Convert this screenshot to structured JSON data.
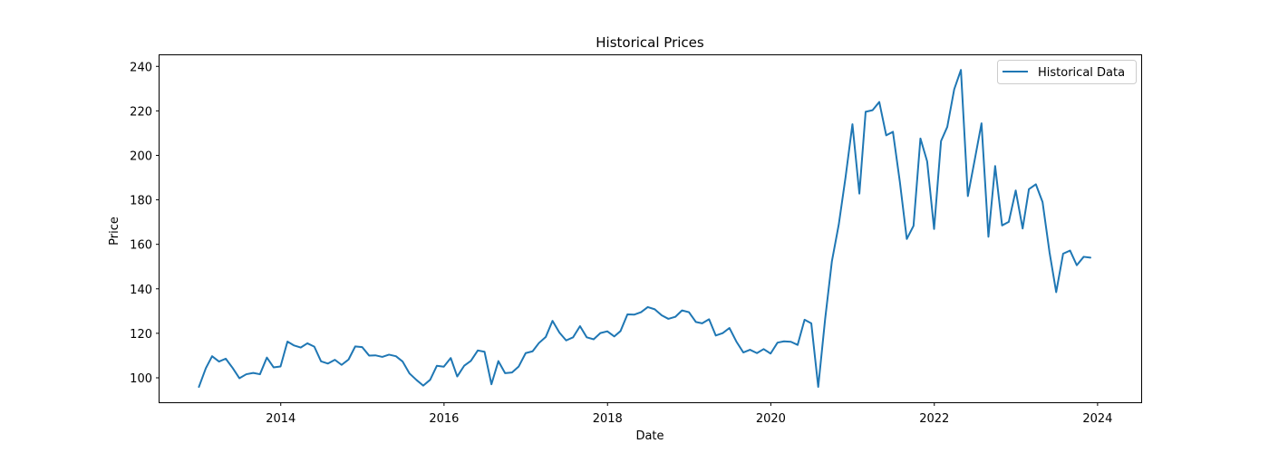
{
  "chart_data": {
    "type": "line",
    "title": "Historical Prices",
    "xlabel": "Date",
    "ylabel": "Price",
    "xlim": [
      "2012-07-08",
      "2024-07-14"
    ],
    "ylim": [
      89,
      245
    ],
    "x_ticks": [
      {
        "date": "2014-01-01",
        "label": "2014"
      },
      {
        "date": "2016-01-01",
        "label": "2016"
      },
      {
        "date": "2018-01-01",
        "label": "2018"
      },
      {
        "date": "2020-01-01",
        "label": "2020"
      },
      {
        "date": "2022-01-01",
        "label": "2022"
      },
      {
        "date": "2024-01-01",
        "label": "2024"
      }
    ],
    "y_ticks": [
      100,
      120,
      140,
      160,
      180,
      200,
      220,
      240
    ],
    "grid": false,
    "legend_position": "top-right",
    "series": [
      {
        "name": "Historical Data",
        "color": "#1f77b4",
        "points": [
          [
            "2012-12-31",
            95.9
          ],
          [
            "2013-01-31",
            104.3
          ],
          [
            "2013-02-28",
            109.7
          ],
          [
            "2013-03-31",
            107.3
          ],
          [
            "2013-04-30",
            108.6
          ],
          [
            "2013-05-31",
            104.4
          ],
          [
            "2013-06-30",
            99.8
          ],
          [
            "2013-07-31",
            101.6
          ],
          [
            "2013-08-31",
            102.2
          ],
          [
            "2013-09-30",
            101.6
          ],
          [
            "2013-10-31",
            109.1
          ],
          [
            "2013-11-30",
            104.7
          ],
          [
            "2013-12-31",
            105.1
          ],
          [
            "2014-01-31",
            116.3
          ],
          [
            "2014-02-28",
            114.6
          ],
          [
            "2014-03-31",
            113.6
          ],
          [
            "2014-04-30",
            115.5
          ],
          [
            "2014-05-31",
            114.0
          ],
          [
            "2014-06-30",
            107.4
          ],
          [
            "2014-07-31",
            106.4
          ],
          [
            "2014-08-31",
            108.1
          ],
          [
            "2014-09-30",
            105.8
          ],
          [
            "2014-10-31",
            108.2
          ],
          [
            "2014-11-30",
            114.1
          ],
          [
            "2014-12-31",
            113.8
          ],
          [
            "2015-01-31",
            110.0
          ],
          [
            "2015-02-28",
            110.1
          ],
          [
            "2015-03-31",
            109.4
          ],
          [
            "2015-04-30",
            110.4
          ],
          [
            "2015-05-31",
            109.7
          ],
          [
            "2015-06-30",
            107.3
          ],
          [
            "2015-07-31",
            101.9
          ],
          [
            "2015-08-31",
            99.0
          ],
          [
            "2015-09-30",
            96.5
          ],
          [
            "2015-10-31",
            99.1
          ],
          [
            "2015-11-30",
            105.4
          ],
          [
            "2015-12-31",
            105.0
          ],
          [
            "2016-01-31",
            108.9
          ],
          [
            "2016-02-29",
            100.6
          ],
          [
            "2016-03-31",
            105.4
          ],
          [
            "2016-04-30",
            107.6
          ],
          [
            "2016-05-31",
            112.3
          ],
          [
            "2016-06-30",
            111.7
          ],
          [
            "2016-07-31",
            97.1
          ],
          [
            "2016-08-31",
            107.5
          ],
          [
            "2016-09-30",
            102.1
          ],
          [
            "2016-10-31",
            102.4
          ],
          [
            "2016-11-30",
            105.1
          ],
          [
            "2016-12-31",
            111.1
          ],
          [
            "2017-01-31",
            111.9
          ],
          [
            "2017-02-28",
            115.6
          ],
          [
            "2017-03-31",
            118.4
          ],
          [
            "2017-04-30",
            125.6
          ],
          [
            "2017-05-31",
            120.3
          ],
          [
            "2017-06-30",
            116.8
          ],
          [
            "2017-07-31",
            118.2
          ],
          [
            "2017-08-31",
            123.2
          ],
          [
            "2017-09-30",
            118.2
          ],
          [
            "2017-10-31",
            117.3
          ],
          [
            "2017-11-30",
            120.1
          ],
          [
            "2017-12-31",
            120.9
          ],
          [
            "2018-01-31",
            118.6
          ],
          [
            "2018-02-28",
            121.0
          ],
          [
            "2018-03-31",
            128.5
          ],
          [
            "2018-04-30",
            128.4
          ],
          [
            "2018-05-31",
            129.5
          ],
          [
            "2018-06-30",
            131.8
          ],
          [
            "2018-07-31",
            130.8
          ],
          [
            "2018-08-31",
            128.1
          ],
          [
            "2018-09-30",
            126.5
          ],
          [
            "2018-10-31",
            127.4
          ],
          [
            "2018-11-30",
            130.3
          ],
          [
            "2018-12-31",
            129.5
          ],
          [
            "2019-01-31",
            125.1
          ],
          [
            "2019-02-28",
            124.5
          ],
          [
            "2019-03-31",
            126.3
          ],
          [
            "2019-04-30",
            119.0
          ],
          [
            "2019-05-31",
            120.1
          ],
          [
            "2019-06-30",
            122.4
          ],
          [
            "2019-07-31",
            116.3
          ],
          [
            "2019-08-31",
            111.4
          ],
          [
            "2019-09-30",
            112.6
          ],
          [
            "2019-10-31",
            111.1
          ],
          [
            "2019-11-30",
            112.9
          ],
          [
            "2019-12-31",
            110.9
          ],
          [
            "2020-01-31",
            115.8
          ],
          [
            "2020-02-29",
            116.4
          ],
          [
            "2020-03-31",
            116.2
          ],
          [
            "2020-04-30",
            114.8
          ],
          [
            "2020-05-31",
            126.1
          ],
          [
            "2020-06-30",
            124.5
          ],
          [
            "2020-07-31",
            95.9
          ],
          [
            "2020-08-31",
            126.5
          ],
          [
            "2020-09-30",
            152.3
          ],
          [
            "2020-10-31",
            169.0
          ],
          [
            "2020-11-30",
            190.0
          ],
          [
            "2020-12-31",
            214.0
          ],
          [
            "2021-01-31",
            182.8
          ],
          [
            "2021-02-28",
            219.6
          ],
          [
            "2021-03-31",
            220.3
          ],
          [
            "2021-04-30",
            224.0
          ],
          [
            "2021-05-31",
            209.0
          ],
          [
            "2021-06-30",
            210.6
          ],
          [
            "2021-07-31",
            188.1
          ],
          [
            "2021-08-31",
            162.4
          ],
          [
            "2021-09-30",
            168.3
          ],
          [
            "2021-10-31",
            207.6
          ],
          [
            "2021-11-30",
            197.3
          ],
          [
            "2021-12-31",
            166.9
          ],
          [
            "2022-01-31",
            206.4
          ],
          [
            "2022-02-28",
            212.8
          ],
          [
            "2022-03-31",
            229.7
          ],
          [
            "2022-04-30",
            238.4
          ],
          [
            "2022-05-31",
            181.7
          ],
          [
            "2022-06-30",
            197.6
          ],
          [
            "2022-07-31",
            214.4
          ],
          [
            "2022-08-31",
            163.4
          ],
          [
            "2022-09-30",
            195.2
          ],
          [
            "2022-10-31",
            168.5
          ],
          [
            "2022-11-30",
            170.1
          ],
          [
            "2022-12-31",
            184.2
          ],
          [
            "2023-01-31",
            167.1
          ],
          [
            "2023-02-28",
            184.8
          ],
          [
            "2023-03-31",
            187.0
          ],
          [
            "2023-04-30",
            179.0
          ],
          [
            "2023-05-31",
            156.5
          ],
          [
            "2023-06-30",
            138.5
          ],
          [
            "2023-07-31",
            155.8
          ],
          [
            "2023-08-31",
            157.2
          ],
          [
            "2023-09-30",
            150.6
          ],
          [
            "2023-10-31",
            154.4
          ],
          [
            "2023-11-30",
            154.0
          ]
        ]
      }
    ]
  }
}
